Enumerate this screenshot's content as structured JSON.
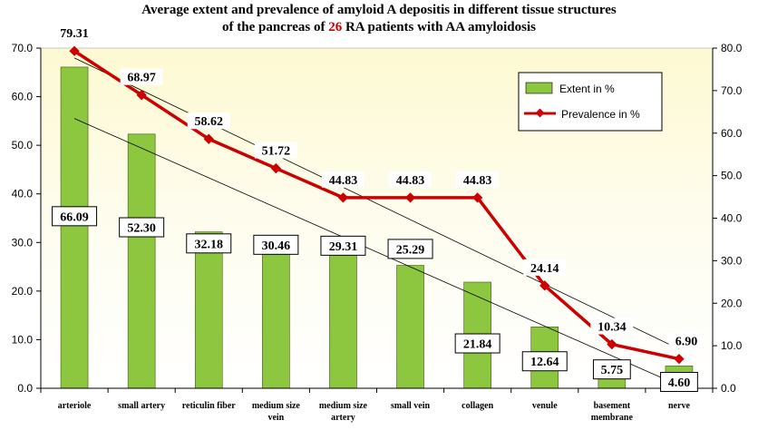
{
  "chart_data": {
    "type": "bar",
    "title_line1": "Average extent and prevalence of amyloid A depositis in different tissue structures",
    "title_line2_pre": "of the pancreas of ",
    "title_line2_num": "26",
    "title_line2_post": " RA patients with AA amyloidosis",
    "categories": [
      [
        "arteriole"
      ],
      [
        "small artery"
      ],
      [
        "reticulin fiber"
      ],
      [
        "medium size",
        "vein"
      ],
      [
        "medium size",
        "artery"
      ],
      [
        "small vein"
      ],
      [
        "collagen"
      ],
      [
        "venule"
      ],
      [
        "basement",
        "membrane"
      ],
      [
        "nerve"
      ]
    ],
    "series": [
      {
        "name": "Extent in %",
        "type": "bar",
        "axis": "left",
        "color": "#8dc63f",
        "values": [
          66.09,
          52.3,
          32.18,
          30.46,
          29.31,
          25.29,
          21.84,
          12.64,
          5.75,
          4.6
        ],
        "labels": [
          "66.09",
          "52.30",
          "32.18",
          "30.46",
          "29.31",
          "25.29",
          "21.84",
          "12.64",
          "5.75",
          "4.60"
        ]
      },
      {
        "name": "Prevalence in %",
        "type": "line",
        "axis": "right",
        "color": "#cc0000",
        "values": [
          79.31,
          68.97,
          58.62,
          51.72,
          44.83,
          44.83,
          44.83,
          24.14,
          10.34,
          6.9
        ],
        "labels": [
          "79.31",
          "68.97",
          "58.62",
          "51.72",
          "44.83",
          "44.83",
          "44.83",
          "24.14",
          "10.34",
          "6.90"
        ]
      }
    ],
    "trendlines": true,
    "y_left": {
      "min": 0,
      "max": 70,
      "step": 10,
      "ticks": [
        "0.0",
        "10.0",
        "20.0",
        "30.0",
        "40.0",
        "50.0",
        "60.0",
        "70.0"
      ]
    },
    "y_right": {
      "min": 0,
      "max": 80,
      "step": 10,
      "ticks": [
        "0.0",
        "10.0",
        "20.0",
        "30.0",
        "40.0",
        "50.0",
        "60.0",
        "70.0",
        "80.0"
      ]
    },
    "legend_position": "top-right",
    "background": "yellow-gradient"
  }
}
